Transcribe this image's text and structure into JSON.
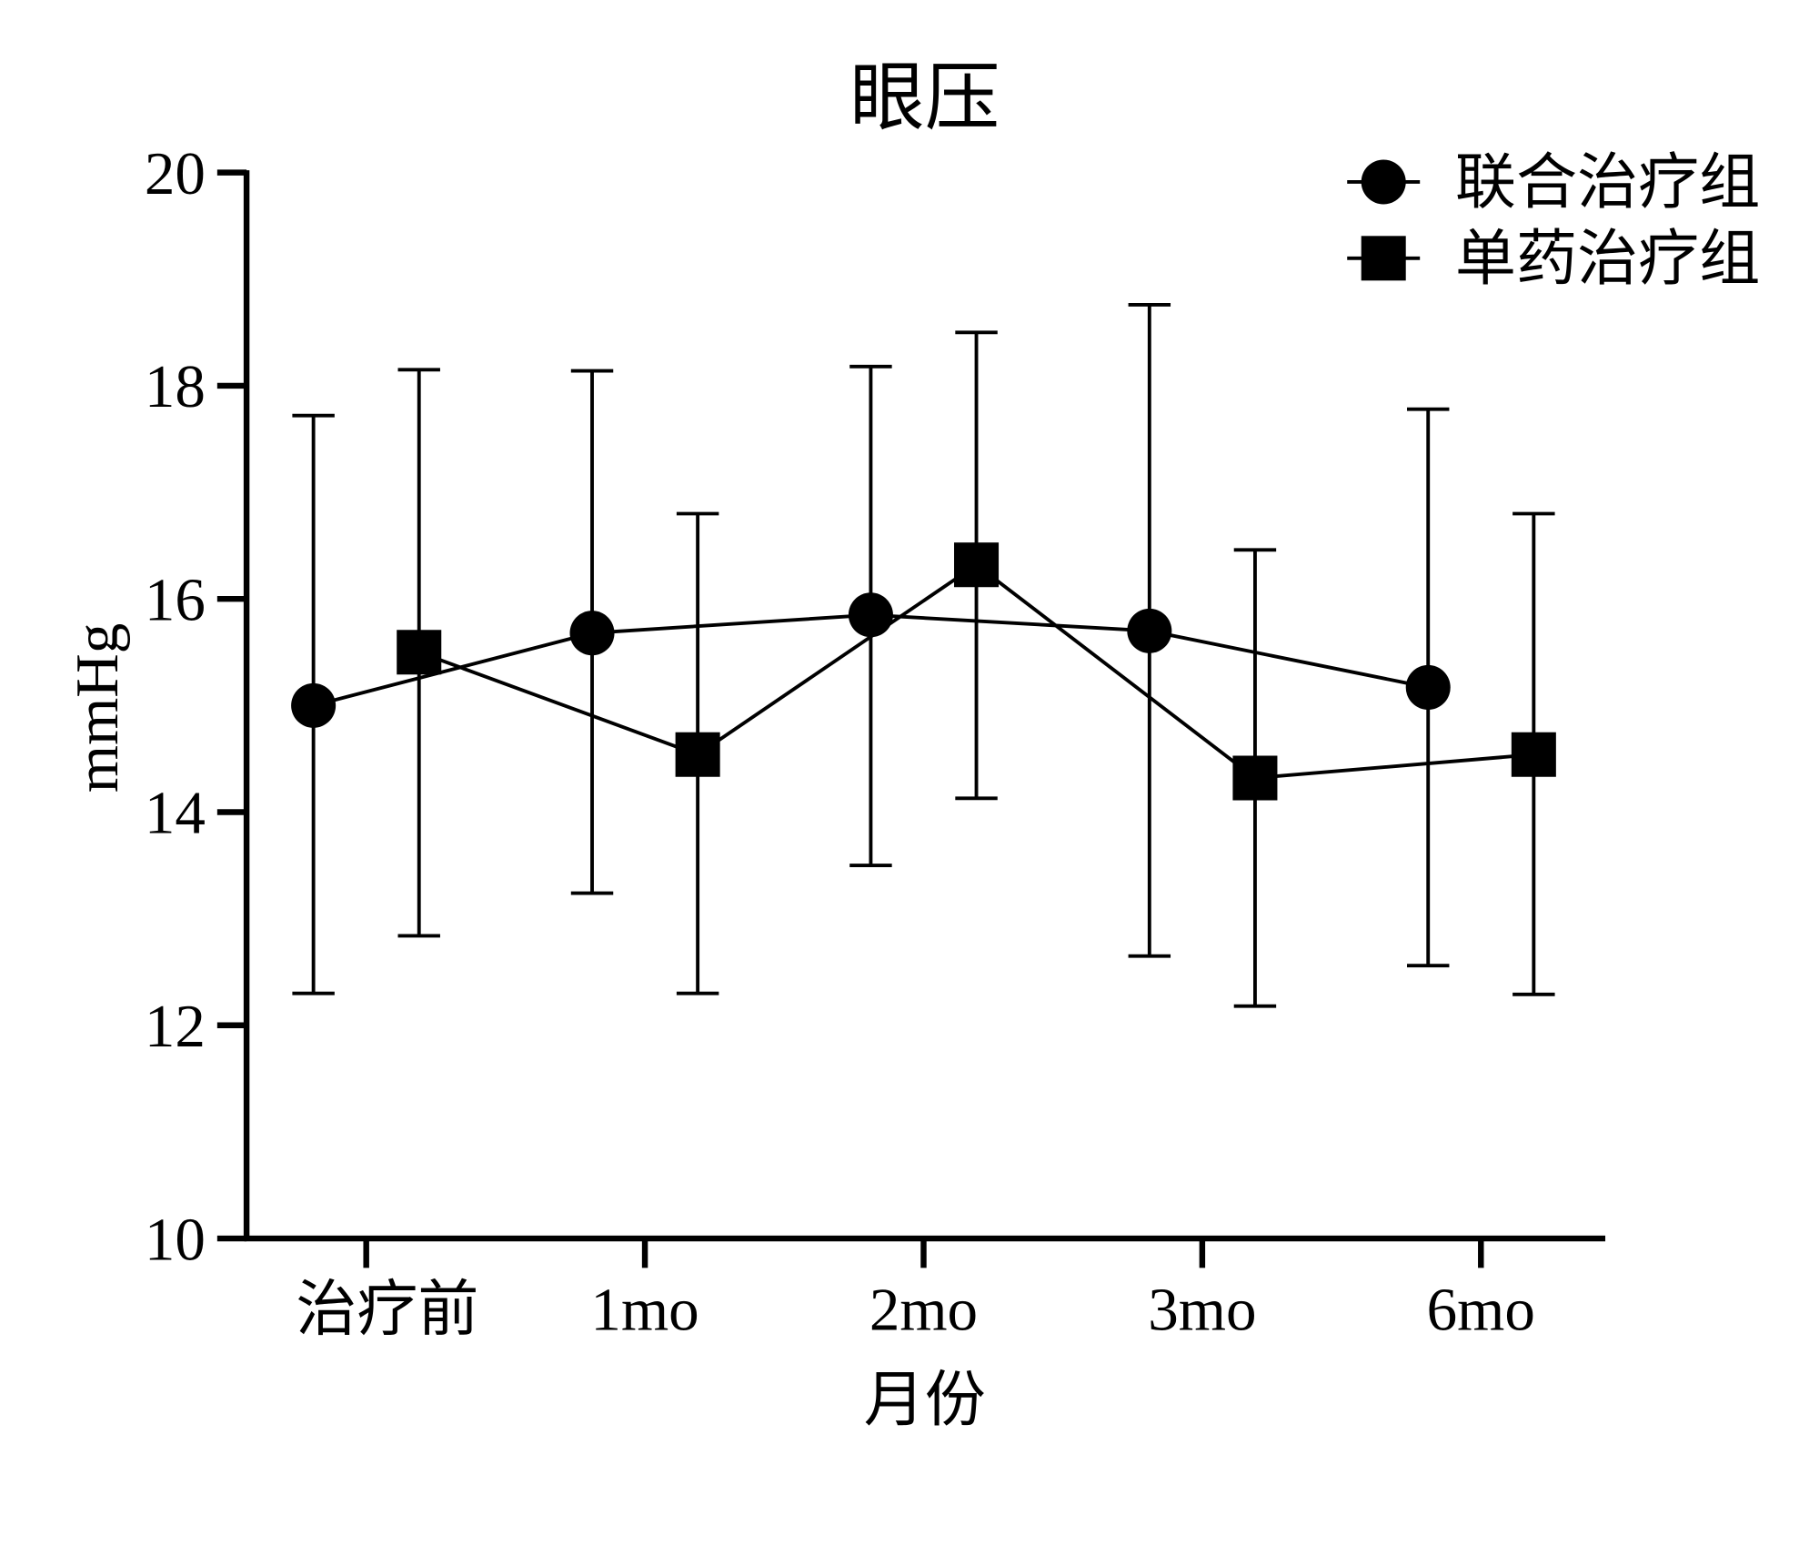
{
  "chart_data": {
    "type": "line",
    "title": "眼压",
    "xlabel": "月份",
    "ylabel": "mmHg",
    "ylim": [
      10,
      20
    ],
    "yticks": [
      10,
      12,
      14,
      16,
      18,
      20
    ],
    "categories": [
      "治疗前",
      "1mo",
      "2mo",
      "3mo",
      "6mo"
    ],
    "legend_position": "top-right",
    "error_bars": "mean ± SD",
    "series": [
      {
        "name": "联合治疗组",
        "marker": "circle",
        "values": [
          15.0,
          15.68,
          15.85,
          15.7,
          15.17
        ],
        "upper": [
          17.72,
          18.14,
          18.18,
          18.76,
          17.78
        ],
        "lower": [
          12.3,
          13.24,
          13.5,
          12.65,
          12.56
        ]
      },
      {
        "name": "单药治疗组",
        "marker": "square",
        "values": [
          15.5,
          14.54,
          16.32,
          14.32,
          14.54
        ],
        "upper": [
          18.15,
          16.8,
          18.5,
          16.46,
          16.8
        ],
        "lower": [
          12.84,
          12.3,
          14.13,
          12.18,
          12.29
        ]
      }
    ],
    "color": "#000000"
  }
}
